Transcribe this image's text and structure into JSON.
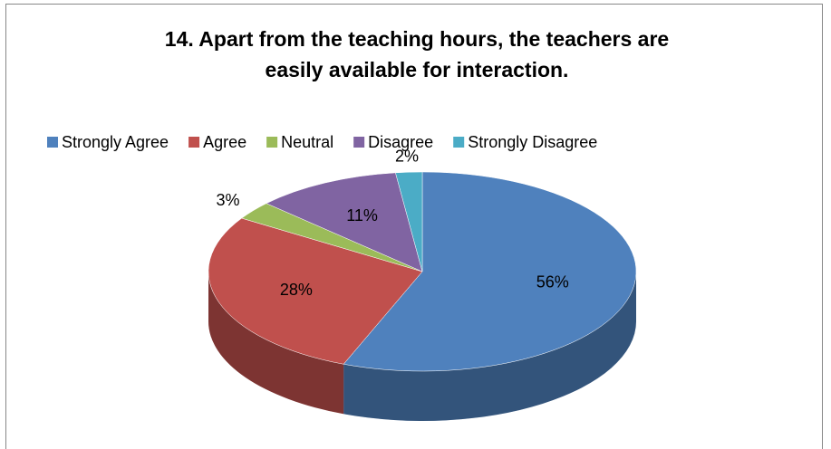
{
  "chart_data": {
    "type": "pie",
    "title": "14. Apart from the teaching hours, the teachers are easily available for interaction.",
    "categories": [
      "Strongly Agree",
      "Agree",
      "Neutral",
      "Disagree",
      "Strongly Disagree"
    ],
    "values": [
      56,
      28,
      3,
      11,
      2
    ],
    "value_labels": [
      "56%",
      "28%",
      "3%",
      "11%",
      "2%"
    ],
    "colors": [
      "#4f81bd",
      "#c0504d",
      "#9bbb59",
      "#8064a2",
      "#4bacc6"
    ],
    "legend_position": "top"
  }
}
